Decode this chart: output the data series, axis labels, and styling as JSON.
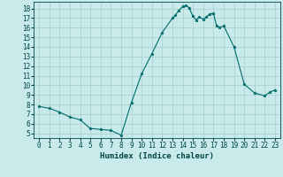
{
  "x": [
    0,
    1,
    2,
    3,
    4,
    5,
    6,
    7,
    8,
    9,
    10,
    11,
    12,
    13,
    13.3,
    13.6,
    14,
    14.3,
    14.6,
    15,
    15.3,
    15.6,
    16,
    16.3,
    16.6,
    17,
    17.3,
    17.6,
    18,
    19,
    20,
    21,
    22,
    22.5,
    23
  ],
  "y": [
    7.8,
    7.6,
    7.2,
    6.7,
    6.4,
    5.5,
    5.4,
    5.3,
    4.8,
    8.2,
    11.2,
    13.3,
    15.5,
    17.0,
    17.3,
    17.8,
    18.2,
    18.3,
    18.1,
    17.2,
    16.8,
    17.1,
    16.9,
    17.1,
    17.4,
    17.5,
    16.2,
    16.0,
    16.2,
    14.0,
    10.1,
    9.2,
    8.9,
    9.3,
    9.5
  ],
  "xlabel": "Humidex (Indice chaleur)",
  "xlim": [
    -0.5,
    23.5
  ],
  "ylim": [
    4.5,
    18.7
  ],
  "yticks": [
    5,
    6,
    7,
    8,
    9,
    10,
    11,
    12,
    13,
    14,
    15,
    16,
    17,
    18
  ],
  "xticks": [
    0,
    1,
    2,
    3,
    4,
    5,
    6,
    7,
    8,
    9,
    10,
    11,
    12,
    13,
    14,
    15,
    16,
    17,
    18,
    19,
    20,
    21,
    22,
    23
  ],
  "line_color": "#006b6b",
  "marker": "*",
  "bg_color": "#c8eaea",
  "grid_color": "#a8cccc",
  "font_color": "#004444",
  "tick_fontsize": 5.5,
  "xlabel_fontsize": 6.5
}
